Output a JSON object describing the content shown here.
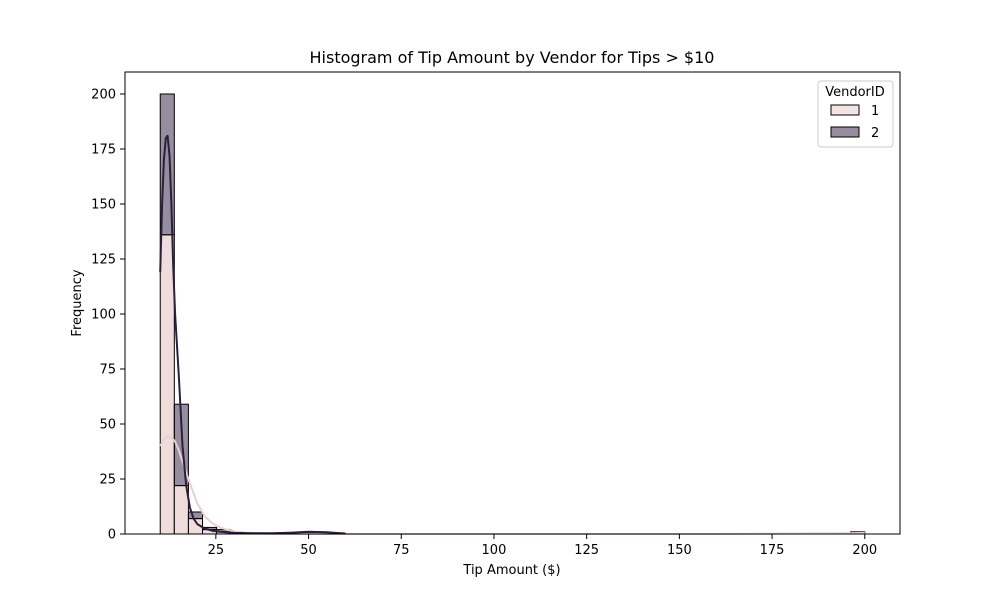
{
  "chart_data": {
    "type": "bar",
    "title": "Histogram of Tip Amount by Vendor for Tips > $10",
    "xlabel": "Tip Amount ($)",
    "ylabel": "Frequency",
    "xlim": [
      0.5,
      209.5
    ],
    "ylim": [
      0,
      210
    ],
    "xticks": [
      25,
      50,
      75,
      100,
      125,
      150,
      175,
      200
    ],
    "yticks": [
      0,
      25,
      50,
      75,
      100,
      125,
      150,
      175,
      200
    ],
    "bin_width": 3.8,
    "bin_start": 10,
    "bins": [
      10,
      13.8,
      17.6,
      21.4,
      25.2,
      29.0,
      44.2,
      48.0,
      51.8,
      55.6,
      196.2
    ],
    "stacked": true,
    "grid": false,
    "legend": {
      "title": "VendorID",
      "placement": "top-right"
    },
    "series": [
      {
        "name": "1",
        "color": "#e8d2cd",
        "counts": [
          136,
          22,
          7,
          2,
          1,
          0,
          0,
          0,
          0,
          0,
          1
        ],
        "kde": {
          "x": [
            10,
            11,
            12,
            13,
            14,
            15,
            16,
            18,
            20,
            22,
            24,
            26,
            28,
            30,
            33,
            36,
            40,
            50,
            80,
            120,
            160,
            196,
            200
          ],
          "y": [
            40,
            43,
            44.5,
            44,
            42,
            38,
            33,
            23,
            14,
            8,
            5,
            3,
            2,
            1.2,
            0.6,
            0.3,
            0.1,
            0.05,
            0,
            0,
            0,
            0.3,
            0.5
          ]
        }
      },
      {
        "name": "2",
        "color": "#2d1e3e",
        "counts": [
          64,
          37,
          3,
          1,
          1,
          0.5,
          0.5,
          0.7,
          0.5,
          0.5,
          0
        ],
        "kde": {
          "x": [
            10,
            10.5,
            11,
            11.5,
            12,
            12.5,
            13,
            13.5,
            14,
            15,
            16,
            17,
            18,
            19,
            20,
            22,
            24,
            26,
            30,
            35,
            40,
            45,
            50,
            55,
            60
          ],
          "y": [
            119,
            150,
            170,
            180,
            181,
            172,
            150,
            122,
            100,
            72,
            40,
            22,
            12,
            7,
            4.5,
            2.5,
            1.5,
            1,
            0.5,
            0.3,
            0.3,
            0.6,
            1.0,
            0.8,
            0.2
          ]
        }
      }
    ]
  }
}
